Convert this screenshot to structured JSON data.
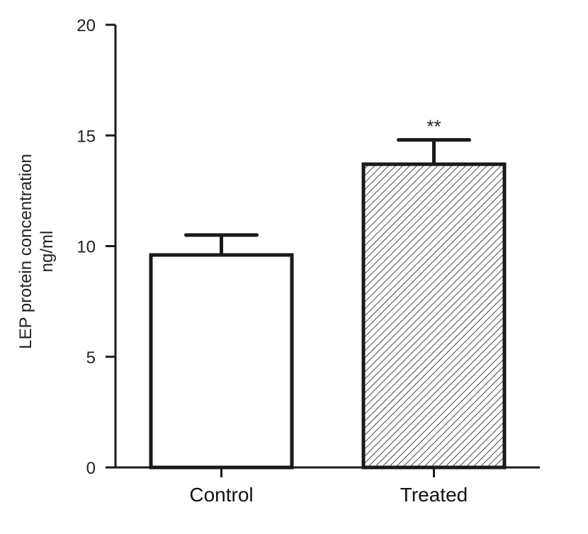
{
  "chart_data": {
    "type": "bar",
    "categories": [
      "Control",
      "Treated"
    ],
    "values": [
      9.6,
      13.7
    ],
    "errors": [
      0.9,
      1.1
    ],
    "bar_fill": [
      "solid-white",
      "diagonal-hatch"
    ],
    "significance": [
      "",
      "**"
    ],
    "title": "",
    "xlabel": "",
    "ylabel_lines": [
      "LEP protein concentration",
      "ng/ml"
    ],
    "ylim": [
      0,
      20
    ],
    "yticks": [
      0,
      5,
      10,
      15,
      20
    ],
    "grid": false
  },
  "colors": {
    "axis": "#1a1a1a",
    "bar_edge": "#1a1a1a",
    "bar_fill_plain": "#ffffff",
    "hatch": "#1a1a1a"
  }
}
